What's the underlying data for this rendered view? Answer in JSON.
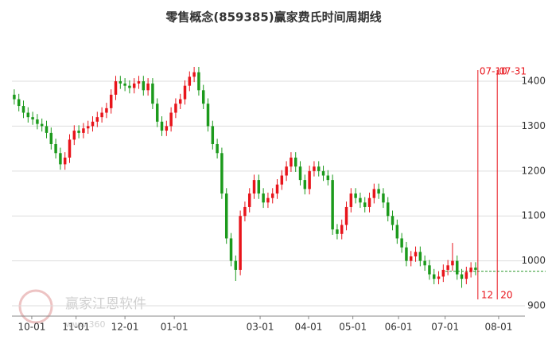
{
  "chart_data": {
    "type": "candlestick",
    "title": "零售概念(859385)赢家费氏时间周期线",
    "up_color": "#e8141b",
    "down_color": "#1c9a1c",
    "x": [
      0,
      1,
      2,
      3,
      4,
      5,
      6,
      7,
      8,
      9,
      10,
      11,
      12,
      13,
      14,
      15,
      16,
      17,
      18,
      19,
      20,
      21,
      22,
      23,
      24,
      25,
      26,
      27,
      28,
      29,
      30,
      31,
      32,
      33,
      34,
      35,
      36,
      37,
      38,
      39,
      40,
      41,
      42,
      43,
      44,
      45,
      46,
      47,
      48,
      49,
      50,
      51,
      52,
      53,
      54,
      55,
      56,
      57,
      58,
      59,
      60,
      61,
      62,
      63,
      64,
      65,
      66,
      67,
      68,
      69,
      70,
      71,
      72,
      73,
      74,
      75,
      76,
      77,
      78,
      79,
      80,
      81,
      82,
      83,
      84,
      85,
      86,
      87,
      88,
      89,
      90,
      91,
      92,
      93,
      94,
      95,
      96,
      97,
      98,
      99,
      100
    ],
    "open": [
      1370,
      1360,
      1345,
      1330,
      1320,
      1315,
      1305,
      1300,
      1285,
      1260,
      1240,
      1215,
      1230,
      1270,
      1290,
      1285,
      1295,
      1300,
      1310,
      1320,
      1330,
      1340,
      1370,
      1400,
      1395,
      1390,
      1385,
      1395,
      1400,
      1380,
      1395,
      1350,
      1310,
      1290,
      1300,
      1330,
      1350,
      1360,
      1390,
      1410,
      1420,
      1380,
      1350,
      1300,
      1260,
      1240,
      1150,
      1050,
      1000,
      980,
      1100,
      1120,
      1150,
      1180,
      1150,
      1130,
      1140,
      1150,
      1170,
      1190,
      1210,
      1230,
      1210,
      1180,
      1160,
      1200,
      1210,
      1200,
      1190,
      1180,
      1070,
      1060,
      1080,
      1120,
      1150,
      1140,
      1130,
      1120,
      1140,
      1160,
      1150,
      1130,
      1100,
      1080,
      1050,
      1030,
      1000,
      1010,
      1020,
      1000,
      990,
      970,
      960,
      965,
      980,
      990,
      1000,
      970,
      960,
      975,
      985
    ],
    "high": [
      1382,
      1372,
      1357,
      1342,
      1332,
      1327,
      1317,
      1312,
      1297,
      1272,
      1252,
      1242,
      1282,
      1302,
      1302,
      1307,
      1312,
      1322,
      1332,
      1342,
      1352,
      1382,
      1412,
      1412,
      1407,
      1402,
      1407,
      1412,
      1412,
      1407,
      1407,
      1362,
      1322,
      1312,
      1342,
      1362,
      1372,
      1402,
      1422,
      1432,
      1432,
      1392,
      1362,
      1312,
      1272,
      1252,
      1162,
      1062,
      1012,
      1112,
      1132,
      1162,
      1192,
      1192,
      1162,
      1152,
      1162,
      1182,
      1202,
      1222,
      1242,
      1242,
      1222,
      1192,
      1212,
      1222,
      1222,
      1212,
      1202,
      1192,
      1082,
      1092,
      1132,
      1162,
      1162,
      1152,
      1142,
      1152,
      1172,
      1172,
      1162,
      1142,
      1112,
      1092,
      1062,
      1042,
      1022,
      1032,
      1032,
      1012,
      1002,
      982,
      977,
      992,
      1002,
      1040,
      1012,
      982,
      987,
      997,
      997
    ],
    "low": [
      1348,
      1333,
      1318,
      1308,
      1303,
      1293,
      1288,
      1273,
      1248,
      1228,
      1203,
      1203,
      1218,
      1258,
      1273,
      1273,
      1283,
      1288,
      1298,
      1308,
      1318,
      1328,
      1358,
      1383,
      1378,
      1373,
      1373,
      1383,
      1368,
      1368,
      1338,
      1298,
      1278,
      1278,
      1288,
      1318,
      1338,
      1348,
      1378,
      1398,
      1368,
      1338,
      1288,
      1248,
      1228,
      1138,
      1038,
      988,
      955,
      968,
      1088,
      1108,
      1138,
      1138,
      1118,
      1118,
      1128,
      1138,
      1158,
      1178,
      1198,
      1198,
      1168,
      1148,
      1148,
      1188,
      1188,
      1178,
      1168,
      1058,
      1048,
      1048,
      1068,
      1108,
      1128,
      1118,
      1108,
      1108,
      1128,
      1138,
      1118,
      1088,
      1068,
      1038,
      1018,
      988,
      988,
      998,
      988,
      978,
      958,
      948,
      948,
      953,
      968,
      978,
      958,
      940,
      948,
      963,
      968
    ],
    "close": [
      1360,
      1345,
      1330,
      1320,
      1315,
      1305,
      1300,
      1285,
      1260,
      1240,
      1215,
      1230,
      1270,
      1290,
      1285,
      1295,
      1300,
      1310,
      1320,
      1330,
      1340,
      1370,
      1400,
      1395,
      1390,
      1385,
      1395,
      1400,
      1380,
      1395,
      1350,
      1310,
      1290,
      1300,
      1330,
      1350,
      1360,
      1390,
      1410,
      1420,
      1380,
      1350,
      1300,
      1260,
      1240,
      1150,
      1050,
      1000,
      980,
      1100,
      1120,
      1150,
      1180,
      1150,
      1130,
      1140,
      1150,
      1170,
      1190,
      1210,
      1230,
      1210,
      1180,
      1160,
      1200,
      1210,
      1200,
      1190,
      1180,
      1070,
      1060,
      1080,
      1120,
      1150,
      1140,
      1130,
      1120,
      1140,
      1160,
      1150,
      1130,
      1100,
      1080,
      1050,
      1030,
      1000,
      1010,
      1020,
      1000,
      990,
      970,
      960,
      965,
      980,
      990,
      1000,
      970,
      960,
      975,
      985,
      980
    ],
    "xlim": [
      -0.5,
      110.7
    ],
    "ylim": [
      877,
      1510
    ],
    "xticks": [
      {
        "value": 3.8,
        "label": "10-01"
      },
      {
        "value": 13.4,
        "label": "11-01"
      },
      {
        "value": 24,
        "label": "12-01"
      },
      {
        "value": 34.7,
        "label": "01-01"
      },
      {
        "value": 53.3,
        "label": "03-01"
      },
      {
        "value": 63.8,
        "label": "04-01"
      },
      {
        "value": 73.4,
        "label": "05-01"
      },
      {
        "value": 83.3,
        "label": "06-01"
      },
      {
        "value": 93.4,
        "label": "07-01"
      },
      {
        "value": 105,
        "label": "08-01"
      }
    ],
    "yticks": [
      900,
      1000,
      1100,
      1200,
      1300,
      1400
    ],
    "grid": true,
    "time_lines": [
      {
        "x": 100.5,
        "top_label": "07-10",
        "bottom_label": "12"
      },
      {
        "x": 104.7,
        "top_label": "07-31",
        "bottom_label": "20"
      }
    ],
    "reference_line": {
      "value": 977,
      "color": "#2e9b2e"
    },
    "watermark": {
      "text": "赢家江恩软件",
      "url": "www.360"
    }
  }
}
